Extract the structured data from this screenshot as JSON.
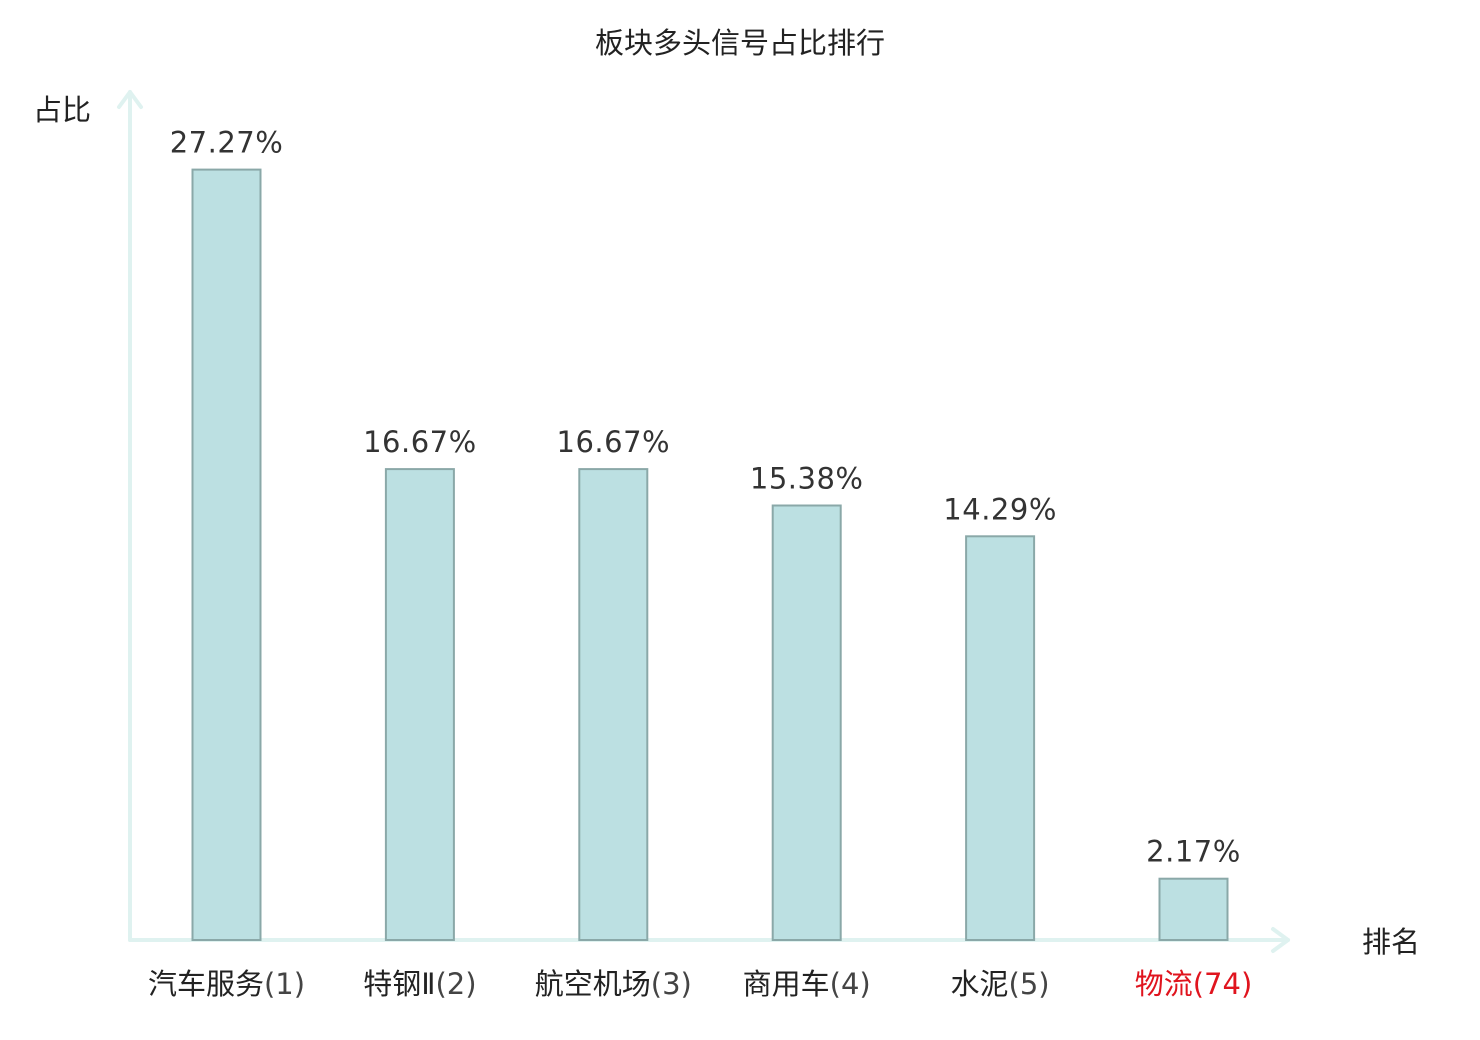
{
  "chart_data": {
    "type": "bar",
    "title": "板块多头信号占比排行",
    "xlabel": "排名",
    "ylabel": "占比",
    "ylim": [
      0,
      30
    ],
    "grid": false,
    "legend": "none",
    "categories": [
      {
        "name": "汽车服务",
        "rank": "(1)",
        "highlight": false
      },
      {
        "name": "特钢Ⅱ",
        "rank": "(2)",
        "highlight": false
      },
      {
        "name": "航空机场",
        "rank": "(3)",
        "highlight": false
      },
      {
        "name": "商用车",
        "rank": "(4)",
        "highlight": false
      },
      {
        "name": "水泥",
        "rank": "(5)",
        "highlight": false
      },
      {
        "name": "物流",
        "rank": "(74)",
        "highlight": true
      }
    ],
    "values": [
      27.27,
      16.67,
      16.67,
      15.38,
      14.29,
      2.17
    ],
    "value_labels": [
      "27.27%",
      "16.67%",
      "16.67%",
      "15.38%",
      "14.29%",
      "2.17%"
    ]
  },
  "colors": {
    "bar_fill": "#bce0e2",
    "bar_stroke": "#8aa8a8",
    "axis": "#dff2f0",
    "text": "#222222",
    "value_text": "#333333",
    "highlight": "#e0141e",
    "rank_text": "#444444"
  }
}
